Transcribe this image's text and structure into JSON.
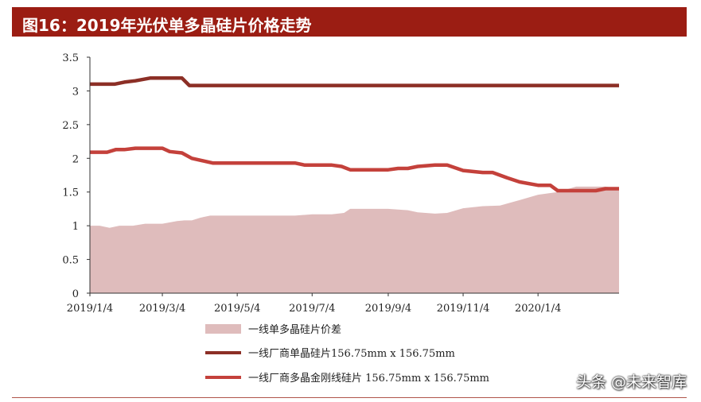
{
  "header": {
    "title": "图16：2019年光伏单多晶硅片价格走势"
  },
  "watermark": "头条 @未来智库",
  "chart_data": {
    "type": "line",
    "title": "",
    "xlabel": "",
    "ylabel": "",
    "ylim": [
      0,
      3.5
    ],
    "yticks": [
      "3.5",
      "3",
      "2.5",
      "2",
      "1.5",
      "1",
      "0.5",
      "0"
    ],
    "x_tick_labels": [
      "2019/1/4",
      "2019/3/4",
      "2019/5/4",
      "2019/7/4",
      "2019/9/4",
      "2019/11/4",
      "2020/1/4"
    ],
    "x_tick_dates": [
      "2019-01-04",
      "2019-03-04",
      "2019-05-04",
      "2019-07-04",
      "2019-09-04",
      "2019-11-04",
      "2020-01-04"
    ],
    "x_range": [
      "2019-01-04",
      "2020-03-10"
    ],
    "grid": false,
    "legend_position": "bottom",
    "series": [
      {
        "name": "一线单多晶硅片价差",
        "kind": "area",
        "color": "#dfbcbc",
        "points": [
          [
            "2019-01-04",
            1.0
          ],
          [
            "2019-01-12",
            1.0
          ],
          [
            "2019-01-20",
            0.97
          ],
          [
            "2019-01-28",
            1.0
          ],
          [
            "2019-02-08",
            1.0
          ],
          [
            "2019-02-18",
            1.03
          ],
          [
            "2019-03-04",
            1.03
          ],
          [
            "2019-03-16",
            1.07
          ],
          [
            "2019-03-22",
            1.08
          ],
          [
            "2019-03-28",
            1.08
          ],
          [
            "2019-04-04",
            1.12
          ],
          [
            "2019-04-12",
            1.15
          ],
          [
            "2019-05-04",
            1.15
          ],
          [
            "2019-06-04",
            1.15
          ],
          [
            "2019-06-20",
            1.15
          ],
          [
            "2019-07-04",
            1.17
          ],
          [
            "2019-07-20",
            1.17
          ],
          [
            "2019-07-30",
            1.19
          ],
          [
            "2019-08-04",
            1.25
          ],
          [
            "2019-09-04",
            1.25
          ],
          [
            "2019-09-20",
            1.23
          ],
          [
            "2019-09-28",
            1.2
          ],
          [
            "2019-10-12",
            1.18
          ],
          [
            "2019-10-22",
            1.19
          ],
          [
            "2019-11-04",
            1.26
          ],
          [
            "2019-11-20",
            1.29
          ],
          [
            "2019-12-04",
            1.3
          ],
          [
            "2019-12-20",
            1.38
          ],
          [
            "2020-01-04",
            1.46
          ],
          [
            "2020-01-20",
            1.5
          ],
          [
            "2020-02-04",
            1.58
          ],
          [
            "2020-02-28",
            1.58
          ],
          [
            "2020-03-10",
            1.55
          ]
        ]
      },
      {
        "name": "一线厂商单晶硅片156.75mm x 156.75mm",
        "kind": "line",
        "color": "#8c2f26",
        "points": [
          [
            "2019-01-04",
            3.1
          ],
          [
            "2019-01-24",
            3.1
          ],
          [
            "2019-02-01",
            3.13
          ],
          [
            "2019-02-10",
            3.15
          ],
          [
            "2019-02-22",
            3.19
          ],
          [
            "2019-03-20",
            3.19
          ],
          [
            "2019-03-26",
            3.08
          ],
          [
            "2020-03-10",
            3.08
          ]
        ]
      },
      {
        "name": "一线厂商多晶金刚线硅片 156.75mm x 156.75mm",
        "kind": "line",
        "color": "#c4413b",
        "points": [
          [
            "2019-01-04",
            2.09
          ],
          [
            "2019-01-18",
            2.09
          ],
          [
            "2019-01-25",
            2.13
          ],
          [
            "2019-02-01",
            2.13
          ],
          [
            "2019-02-10",
            2.15
          ],
          [
            "2019-03-04",
            2.15
          ],
          [
            "2019-03-10",
            2.1
          ],
          [
            "2019-03-20",
            2.08
          ],
          [
            "2019-03-28",
            2.0
          ],
          [
            "2019-04-14",
            1.93
          ],
          [
            "2019-05-04",
            1.93
          ],
          [
            "2019-06-20",
            1.93
          ],
          [
            "2019-06-28",
            1.9
          ],
          [
            "2019-07-20",
            1.9
          ],
          [
            "2019-07-28",
            1.88
          ],
          [
            "2019-08-04",
            1.83
          ],
          [
            "2019-09-04",
            1.83
          ],
          [
            "2019-09-12",
            1.85
          ],
          [
            "2019-09-20",
            1.85
          ],
          [
            "2019-09-28",
            1.88
          ],
          [
            "2019-10-12",
            1.9
          ],
          [
            "2019-10-22",
            1.9
          ],
          [
            "2019-11-04",
            1.82
          ],
          [
            "2019-11-20",
            1.79
          ],
          [
            "2019-11-28",
            1.79
          ],
          [
            "2019-12-10",
            1.71
          ],
          [
            "2019-12-20",
            1.65
          ],
          [
            "2020-01-04",
            1.6
          ],
          [
            "2020-01-14",
            1.6
          ],
          [
            "2020-01-20",
            1.52
          ],
          [
            "2020-02-20",
            1.52
          ],
          [
            "2020-02-28",
            1.55
          ],
          [
            "2020-03-10",
            1.55
          ]
        ]
      }
    ]
  }
}
